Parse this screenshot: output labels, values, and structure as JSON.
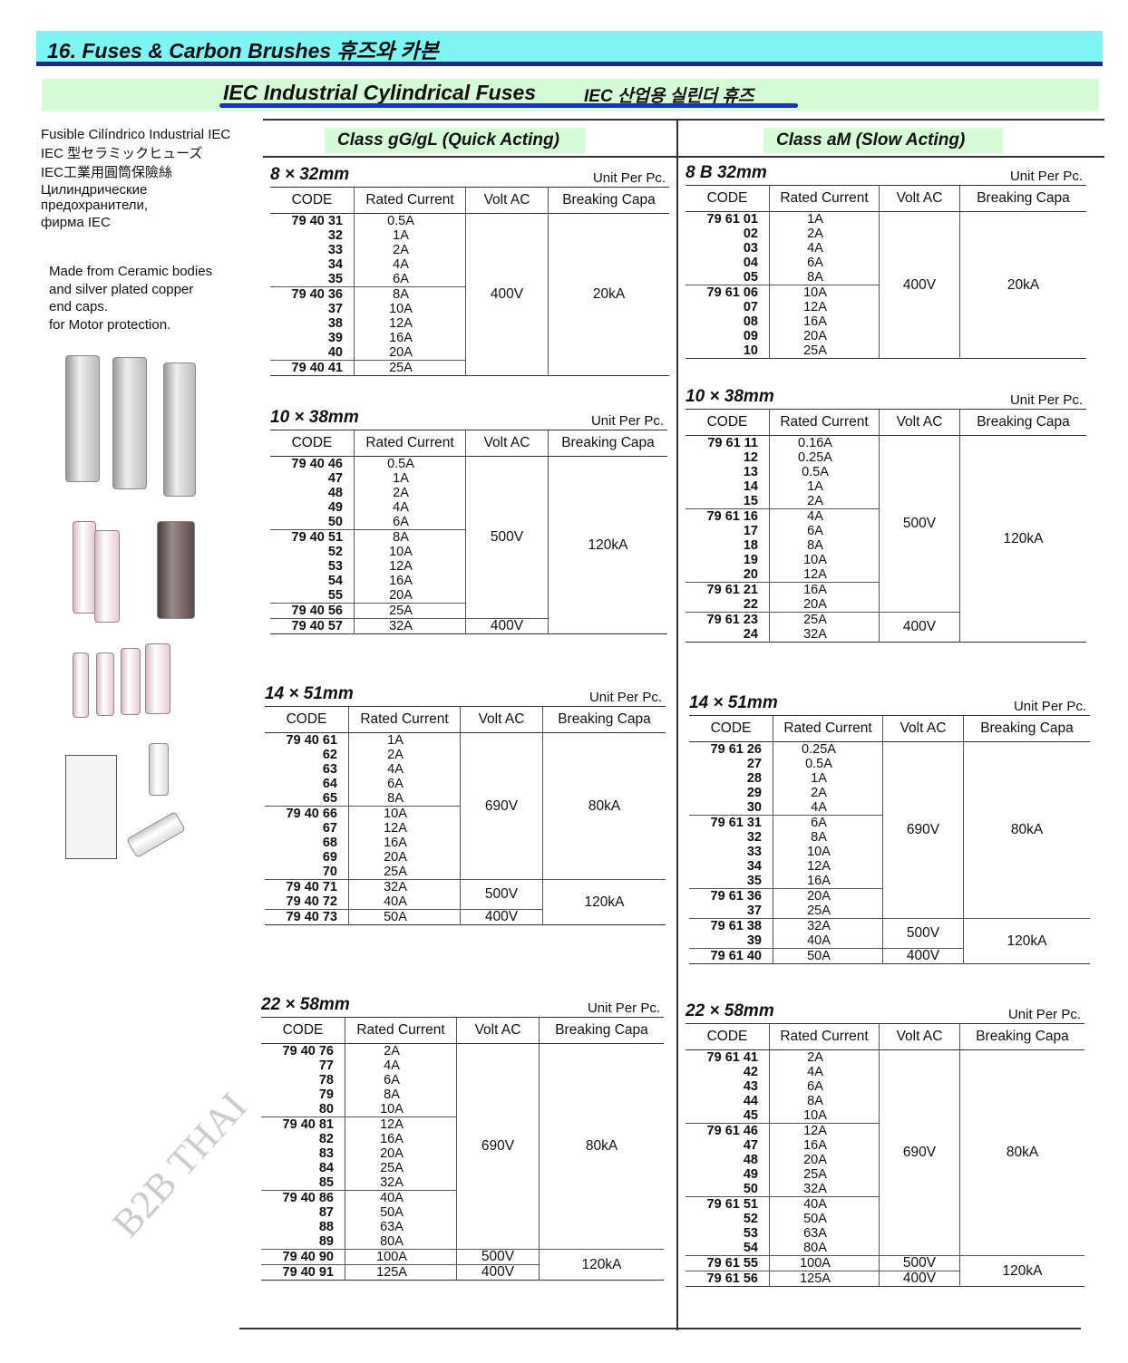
{
  "header": {
    "section": "16. Fuses & Carbon Brushes  휴즈와 카본",
    "title": "IEC Industrial Cylindrical Fuses",
    "title_ko": "IEC 산업용 실린더 휴즈"
  },
  "sidebar": {
    "names": [
      "Fusible Cilíndrico Industrial IEC",
      "IEC 型セラミックヒューズ",
      "IEC工業用圓筒保險絲",
      "Цилиндрические",
      "предохранители,",
      "фирма IEC"
    ],
    "description": [
      "Made from Ceramic bodies",
      "and silver plated copper",
      "end caps.",
      "for Motor protection."
    ]
  },
  "watermark": "B2B THAI",
  "columns": {
    "code": "CODE",
    "current": "Rated Current",
    "volt": "Volt  AC",
    "breaking": "Breaking Capa"
  },
  "unit_label": "Unit Per Pc.",
  "classes": [
    {
      "label": "Class gG/gL (Quick Acting)",
      "tables": [
        {
          "title": "8 × 32mm",
          "groups": [
            5,
            5,
            1
          ],
          "codes": [
            "79 40 31",
            "32",
            "33",
            "34",
            "35",
            "79 40 36",
            "37",
            "38",
            "39",
            "40",
            "79 40 41"
          ],
          "currents": [
            "0.5A",
            "1A",
            "2A",
            "4A",
            "6A",
            "8A",
            "10A",
            "12A",
            "16A",
            "20A",
            "25A"
          ],
          "volt": [
            {
              "v": "400V",
              "rows": 11
            }
          ],
          "breaking": [
            {
              "v": "20kA",
              "rows": 11
            }
          ]
        },
        {
          "title": "10 × 38mm",
          "groups": [
            5,
            5,
            1,
            1
          ],
          "codes": [
            "79 40 46",
            "47",
            "48",
            "49",
            "50",
            "79 40 51",
            "52",
            "53",
            "54",
            "55",
            "79 40 56",
            "79 40 57"
          ],
          "currents": [
            "0.5A",
            "1A",
            "2A",
            "4A",
            "6A",
            "8A",
            "10A",
            "12A",
            "16A",
            "20A",
            "25A",
            "32A"
          ],
          "volt": [
            {
              "v": "500V",
              "rows": 11
            },
            {
              "v": "400V",
              "rows": 1
            }
          ],
          "breaking": [
            {
              "v": "120kA",
              "rows": 12
            }
          ]
        },
        {
          "title": "14 × 51mm",
          "groups": [
            5,
            5,
            2,
            1
          ],
          "codes": [
            "79 40 61",
            "62",
            "63",
            "64",
            "65",
            "79 40 66",
            "67",
            "68",
            "69",
            "70",
            "79 40 71",
            "79 40 72",
            "79 40 73"
          ],
          "currents": [
            "1A",
            "2A",
            "4A",
            "6A",
            "8A",
            "10A",
            "12A",
            "16A",
            "20A",
            "25A",
            "32A",
            "40A",
            "50A"
          ],
          "volt": [
            {
              "v": "690V",
              "rows": 10
            },
            {
              "v": "500V",
              "rows": 2
            },
            {
              "v": "400V",
              "rows": 1
            }
          ],
          "breaking": [
            {
              "v": "80kA",
              "rows": 10
            },
            {
              "v": "120kA",
              "rows": 3
            }
          ]
        },
        {
          "title": "22 × 58mm",
          "groups": [
            5,
            5,
            4,
            1,
            1
          ],
          "codes": [
            "79 40 76",
            "77",
            "78",
            "79",
            "80",
            "79 40 81",
            "82",
            "83",
            "84",
            "85",
            "79 40 86",
            "87",
            "88",
            "89",
            "79 40 90",
            "79 40 91"
          ],
          "currents": [
            "2A",
            "4A",
            "6A",
            "8A",
            "10A",
            "12A",
            "16A",
            "20A",
            "25A",
            "32A",
            "40A",
            "50A",
            "63A",
            "80A",
            "100A",
            "125A"
          ],
          "volt": [
            {
              "v": "690V",
              "rows": 14
            },
            {
              "v": "500V",
              "rows": 1
            },
            {
              "v": "400V",
              "rows": 1
            }
          ],
          "breaking": [
            {
              "v": "80kA",
              "rows": 14
            },
            {
              "v": "120kA",
              "rows": 2
            }
          ]
        }
      ]
    },
    {
      "label": "Class aM (Slow Acting)",
      "tables": [
        {
          "title": "8 B 32mm",
          "groups": [
            5,
            5
          ],
          "codes": [
            "79 61 01",
            "02",
            "03",
            "04",
            "05",
            "79 61 06",
            "07",
            "08",
            "09",
            "10"
          ],
          "currents": [
            "1A",
            "2A",
            "4A",
            "6A",
            "8A",
            "10A",
            "12A",
            "16A",
            "20A",
            "25A"
          ],
          "volt": [
            {
              "v": "400V",
              "rows": 10
            }
          ],
          "breaking": [
            {
              "v": "20kA",
              "rows": 10
            }
          ]
        },
        {
          "title": "10 × 38mm",
          "groups": [
            5,
            5,
            2,
            2
          ],
          "codes": [
            "79 61 11",
            "12",
            "13",
            "14",
            "15",
            "79 61 16",
            "17",
            "18",
            "19",
            "20",
            "79 61 21",
            "22",
            "79 61 23",
            "24"
          ],
          "currents": [
            "0.16A",
            "0.25A",
            "0.5A",
            "1A",
            "2A",
            "4A",
            "6A",
            "8A",
            "10A",
            "12A",
            "16A",
            "20A",
            "25A",
            "32A"
          ],
          "volt": [
            {
              "v": "500V",
              "rows": 12
            },
            {
              "v": "400V",
              "rows": 2
            }
          ],
          "breaking": [
            {
              "v": "120kA",
              "rows": 14
            }
          ]
        },
        {
          "title": "14 × 51mm",
          "groups": [
            5,
            5,
            2,
            2,
            1
          ],
          "codes": [
            "79 61 26",
            "27",
            "28",
            "29",
            "30",
            "79 61 31",
            "32",
            "33",
            "34",
            "35",
            "79 61 36",
            "37",
            "79 61 38",
            "39",
            "79 61 40"
          ],
          "currents": [
            "0.25A",
            "0.5A",
            "1A",
            "2A",
            "4A",
            "6A",
            "8A",
            "10A",
            "12A",
            "16A",
            "20A",
            "25A",
            "32A",
            "40A",
            "50A"
          ],
          "volt": [
            {
              "v": "690V",
              "rows": 12
            },
            {
              "v": "500V",
              "rows": 2
            },
            {
              "v": "400V",
              "rows": 1
            }
          ],
          "breaking": [
            {
              "v": "80kA",
              "rows": 12
            },
            {
              "v": "120kA",
              "rows": 3
            }
          ]
        },
        {
          "title": "22 × 58mm",
          "groups": [
            5,
            5,
            4,
            1,
            1
          ],
          "codes": [
            "79 61 41",
            "42",
            "43",
            "44",
            "45",
            "79 61 46",
            "47",
            "48",
            "49",
            "50",
            "79 61 51",
            "52",
            "53",
            "54",
            "79 61 55",
            "79 61 56"
          ],
          "currents": [
            "2A",
            "4A",
            "6A",
            "8A",
            "10A",
            "12A",
            "16A",
            "20A",
            "25A",
            "32A",
            "40A",
            "50A",
            "63A",
            "80A",
            "100A",
            "125A"
          ],
          "volt": [
            {
              "v": "690V",
              "rows": 14
            },
            {
              "v": "500V",
              "rows": 1
            },
            {
              "v": "400V",
              "rows": 1
            }
          ],
          "breaking": [
            {
              "v": "80kA",
              "rows": 14
            },
            {
              "v": "120kA",
              "rows": 2
            }
          ]
        }
      ]
    }
  ]
}
